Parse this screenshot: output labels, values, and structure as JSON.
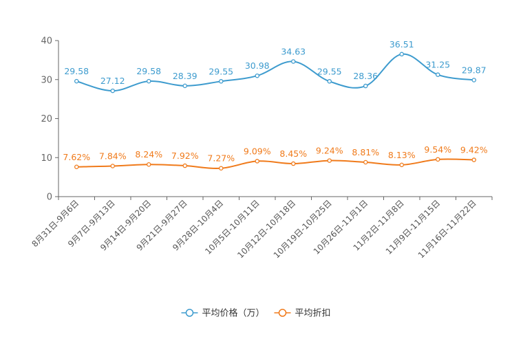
{
  "chart_data": {
    "type": "line",
    "categories": [
      "8月31日-9月6日",
      "9月7日-9月13日",
      "9月14日-9月20日",
      "9月21日-9月27日",
      "9月28日-10月4日",
      "10月5日-10月11日",
      "10月12日-10月18日",
      "10月19日-10月25日",
      "10月26日-11月1日",
      "11月2日-11月8日",
      "11月9日-11月15日",
      "11月16日-11月22日"
    ],
    "series": [
      {
        "name": "平均价格（万）",
        "color": "#3d9bce",
        "values": [
          29.58,
          27.12,
          29.58,
          28.39,
          29.55,
          30.98,
          34.63,
          29.55,
          28.36,
          36.51,
          31.25,
          29.87
        ],
        "labels": [
          "29.58",
          "27.12",
          "29.58",
          "28.39",
          "29.55",
          "30.98",
          "34.63",
          "29.55",
          "28.36",
          "36.51",
          "31.25",
          "29.87"
        ]
      },
      {
        "name": "平均折扣",
        "color": "#f07a1a",
        "values": [
          7.62,
          7.84,
          8.24,
          7.92,
          7.27,
          9.09,
          8.45,
          9.24,
          8.81,
          8.13,
          9.54,
          9.42
        ],
        "labels": [
          "7.62%",
          "7.84%",
          "8.24%",
          "7.92%",
          "7.27%",
          "9.09%",
          "8.45%",
          "9.24%",
          "8.81%",
          "8.13%",
          "9.54%",
          "9.42%"
        ]
      }
    ],
    "ylim": [
      0,
      40
    ],
    "yticks": [
      0,
      10,
      20,
      30,
      40
    ],
    "ytick_labels": [
      "0",
      "10",
      "20",
      "30",
      "40"
    ],
    "title": "",
    "xlabel": "",
    "ylabel": "",
    "grid": false,
    "legend_position": "bottom-center",
    "colors": {
      "axis": "#666666",
      "text": "#555555"
    }
  }
}
